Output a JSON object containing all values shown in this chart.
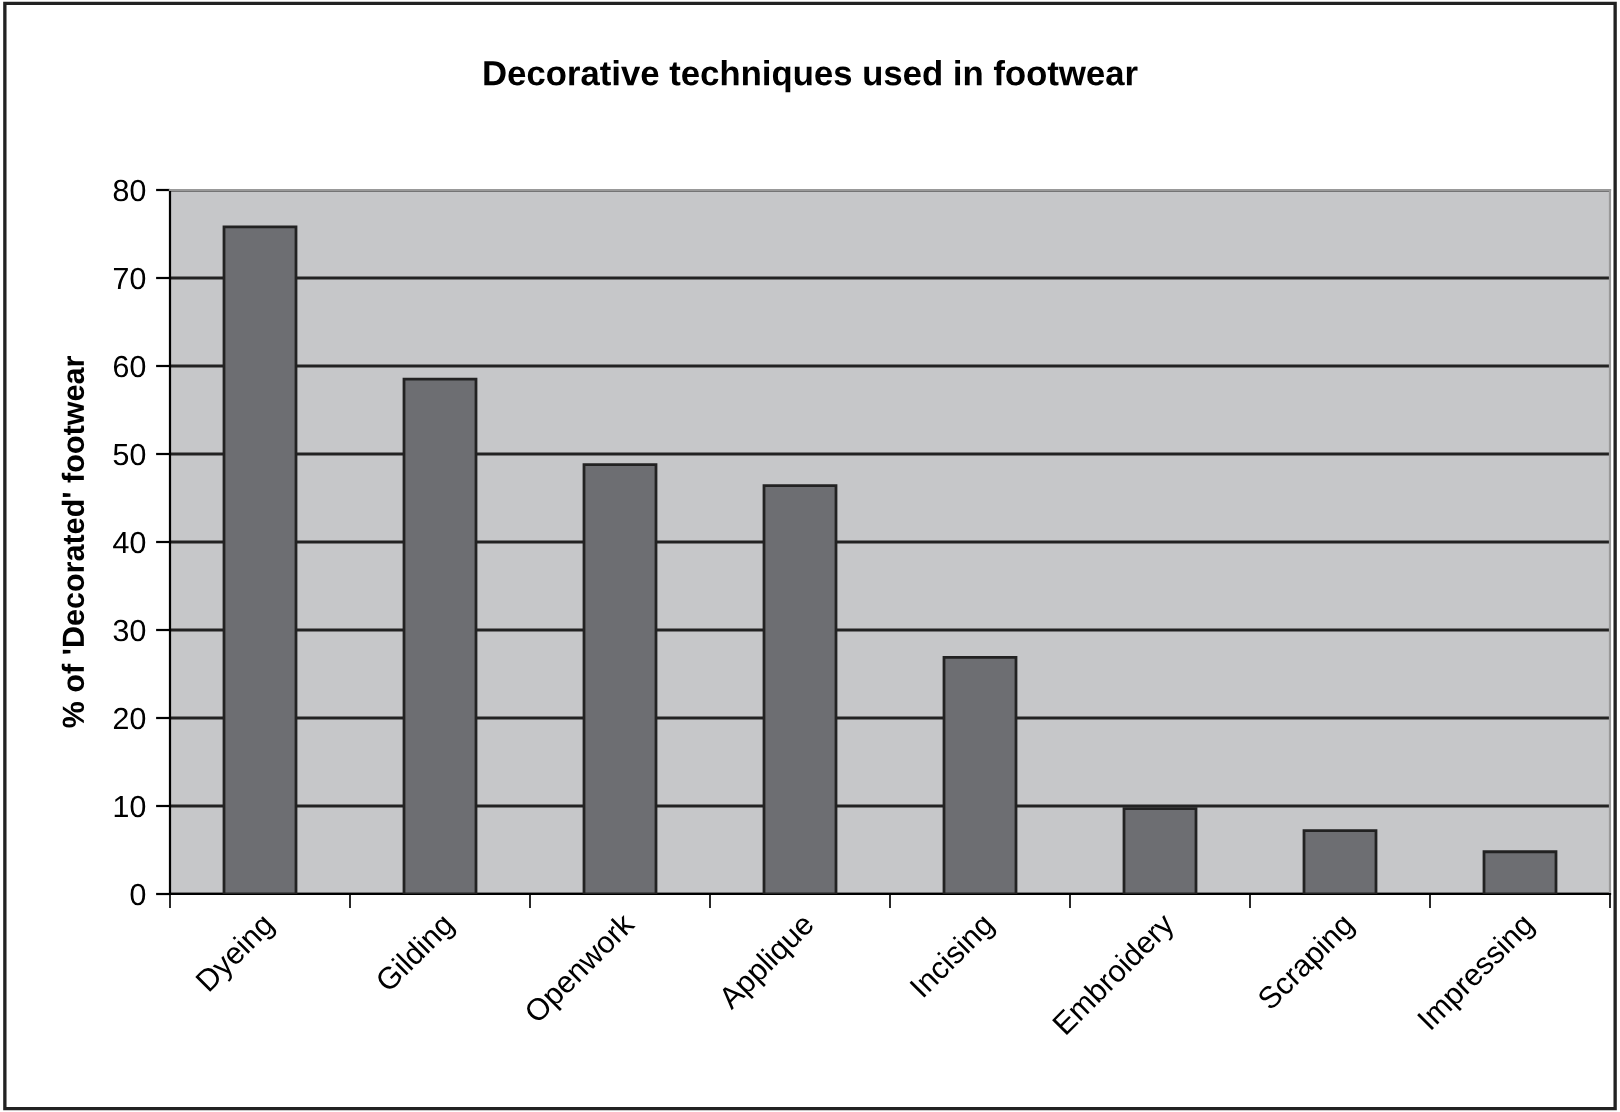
{
  "chart_data": {
    "type": "bar",
    "title": "Decorative techniques used in footwear",
    "ylabel": "% of 'Decorated' footwear",
    "categories": [
      "Dyeing",
      "Gilding",
      "Openwork",
      "Applique",
      "Incising",
      "Embroidery",
      "Scraping",
      "Impressing"
    ],
    "values": [
      75.8,
      58.5,
      48.8,
      46.4,
      26.9,
      9.7,
      7.2,
      4.8
    ],
    "color": "#6d6e72",
    "ylim": [
      0,
      80
    ],
    "yticks": [
      0,
      10,
      20,
      30,
      40,
      50,
      60,
      70,
      80
    ],
    "grid": "y"
  }
}
